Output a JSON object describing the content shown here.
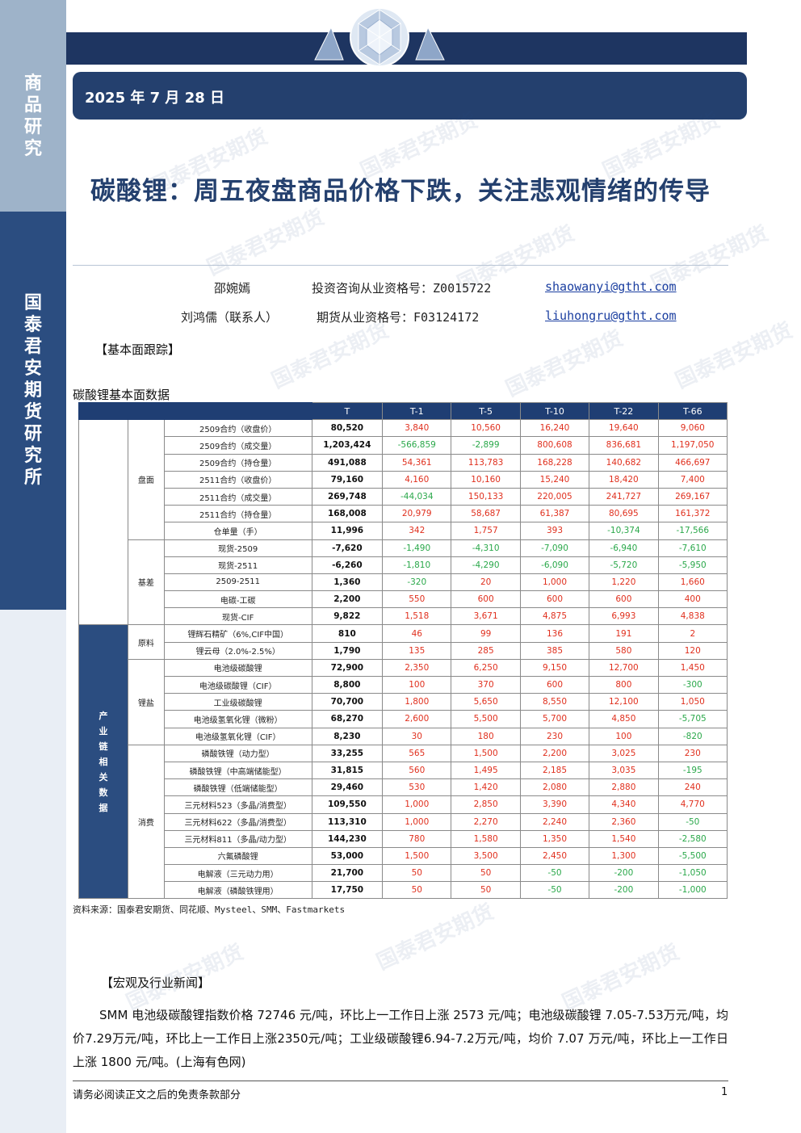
{
  "sidebar": {
    "top_label": "商品研究",
    "org_label": "国泰君安期货研究所"
  },
  "header": {
    "date": "2025 年 7 月 28 日"
  },
  "watermark": {
    "text": "国泰君安期货"
  },
  "title": "碳酸锂：周五夜盘商品价格下跌，关注悲观情绪的传导",
  "authors": [
    {
      "name": "邵婉嫣",
      "cert_label": "投资咨询从业资格号：Z0015722",
      "email": "shaowanyi@gtht.com"
    },
    {
      "name": "刘鸿儒（联系人）",
      "cert_label": "期货从业资格号：F03124172",
      "email": "liuhongru@gtht.com"
    }
  ],
  "sections": {
    "fundamental": "【基本面跟踪】",
    "news": "【宏观及行业新闻】"
  },
  "table": {
    "caption": "碳酸锂基本面数据",
    "headers": [
      "T",
      "T-1",
      "T-5",
      "T-10",
      "T-22",
      "T-66"
    ],
    "main_category": "产业链相关数据",
    "groups": [
      {
        "name": "盘面",
        "rows": [
          {
            "item": "2509合约（收盘价）",
            "t": "80,520",
            "vals": [
              "3,840",
              "10,560",
              "16,240",
              "19,640",
              "9,060"
            ]
          },
          {
            "item": "2509合约（成交量）",
            "t": "1,203,424",
            "vals": [
              "-566,859",
              "-2,899",
              "800,608",
              "836,681",
              "1,197,050"
            ]
          },
          {
            "item": "2509合约（持仓量）",
            "t": "491,088",
            "vals": [
              "54,361",
              "113,783",
              "168,228",
              "140,682",
              "466,697"
            ]
          },
          {
            "item": "2511合约（收盘价）",
            "t": "79,160",
            "vals": [
              "4,160",
              "10,160",
              "15,240",
              "18,420",
              "7,400"
            ]
          },
          {
            "item": "2511合约（成交量）",
            "t": "269,748",
            "vals": [
              "-44,034",
              "150,133",
              "220,005",
              "241,727",
              "269,167"
            ]
          },
          {
            "item": "2511合约（持仓量）",
            "t": "168,008",
            "vals": [
              "20,979",
              "58,687",
              "61,387",
              "80,695",
              "161,372"
            ]
          },
          {
            "item": "仓单量（手）",
            "t": "11,996",
            "vals": [
              "342",
              "1,757",
              "393",
              "-10,374",
              "-17,566"
            ]
          }
        ]
      },
      {
        "name": "基差",
        "rows": [
          {
            "item": "现货-2509",
            "t": "-7,620",
            "vals": [
              "-1,490",
              "-4,310",
              "-7,090",
              "-6,940",
              "-7,610"
            ]
          },
          {
            "item": "现货-2511",
            "t": "-6,260",
            "vals": [
              "-1,810",
              "-4,290",
              "-6,090",
              "-5,720",
              "-5,950"
            ]
          },
          {
            "item": "2509-2511",
            "t": "1,360",
            "vals": [
              "-320",
              "20",
              "1,000",
              "1,220",
              "1,660"
            ]
          },
          {
            "item": "电碳-工碳",
            "t": "2,200",
            "vals": [
              "550",
              "600",
              "600",
              "600",
              "400"
            ]
          },
          {
            "item": "现货-CIF",
            "t": "9,822",
            "vals": [
              "1,518",
              "3,671",
              "4,875",
              "6,993",
              "4,838"
            ]
          }
        ]
      },
      {
        "name": "原料",
        "rows": [
          {
            "item": "锂辉石精矿（6%,CIF中国）",
            "t": "810",
            "vals": [
              "46",
              "99",
              "136",
              "191",
              "2"
            ]
          },
          {
            "item": "锂云母（2.0%-2.5%）",
            "t": "1,790",
            "vals": [
              "135",
              "285",
              "385",
              "580",
              "120"
            ]
          }
        ]
      },
      {
        "name": "锂盐",
        "rows": [
          {
            "item": "电池级碳酸锂",
            "t": "72,900",
            "vals": [
              "2,350",
              "6,250",
              "9,150",
              "12,700",
              "1,450"
            ]
          },
          {
            "item": "电池级碳酸锂（CIF）",
            "t": "8,800",
            "vals": [
              "100",
              "370",
              "600",
              "800",
              "-300"
            ]
          },
          {
            "item": "工业级碳酸锂",
            "t": "70,700",
            "vals": [
              "1,800",
              "5,650",
              "8,550",
              "12,100",
              "1,050"
            ]
          },
          {
            "item": "电池级氢氧化锂（微粉）",
            "t": "68,270",
            "vals": [
              "2,600",
              "5,500",
              "5,700",
              "4,850",
              "-5,705"
            ]
          },
          {
            "item": "电池级氢氧化锂（CIF）",
            "t": "8,230",
            "vals": [
              "30",
              "180",
              "230",
              "100",
              "-820"
            ]
          }
        ]
      },
      {
        "name": "消费",
        "rows": [
          {
            "item": "磷酸铁锂（动力型）",
            "t": "33,255",
            "vals": [
              "565",
              "1,500",
              "2,200",
              "3,025",
              "230"
            ]
          },
          {
            "item": "磷酸铁锂（中高端储能型）",
            "t": "31,815",
            "vals": [
              "560",
              "1,495",
              "2,185",
              "3,035",
              "-195"
            ]
          },
          {
            "item": "磷酸铁锂（低端储能型）",
            "t": "29,460",
            "vals": [
              "530",
              "1,420",
              "2,080",
              "2,880",
              "240"
            ]
          },
          {
            "item": "三元材料523（多晶/消费型）",
            "t": "109,550",
            "vals": [
              "1,000",
              "2,850",
              "3,390",
              "4,340",
              "4,770"
            ]
          },
          {
            "item": "三元材料622（多晶/消费型）",
            "t": "113,310",
            "vals": [
              "1,000",
              "2,270",
              "2,240",
              "2,360",
              "-50"
            ]
          },
          {
            "item": "三元材料811（多晶/动力型）",
            "t": "144,230",
            "vals": [
              "780",
              "1,580",
              "1,350",
              "1,540",
              "-2,580"
            ]
          },
          {
            "item": "六氟磷酸锂",
            "t": "53,000",
            "vals": [
              "1,500",
              "3,500",
              "2,450",
              "1,300",
              "-5,500"
            ]
          },
          {
            "item": "电解液（三元动力用）",
            "t": "21,700",
            "vals": [
              "50",
              "50",
              "-50",
              "-200",
              "-1,050"
            ]
          },
          {
            "item": "电解液（磷酸铁锂用）",
            "t": "17,750",
            "vals": [
              "50",
              "50",
              "-50",
              "-200",
              "-1,000"
            ]
          }
        ]
      }
    ],
    "source": "资料来源：国泰君安期货、同花顺、Mysteel、SMM、Fastmarkets"
  },
  "news_paragraph": "SMM 电池级碳酸锂指数价格 72746 元/吨，环比上一工作日上涨 2573 元/吨；电池级碳酸锂 7.05-7.53万元/吨，均价7.29万元/吨，环比上一工作日上涨2350元/吨；工业级碳酸锂6.94-7.2万元/吨，均价 7.07 万元/吨，环比上一工作日上涨 1800 元/吨。(上海有色网)",
  "footer": {
    "disclaimer": "请务必阅读正文之后的免责条款部分",
    "page_number": "1"
  },
  "colors": {
    "navy": "#1e3561",
    "accent_blue": "#2b4d80",
    "positive": "#e0301e",
    "negative": "#2aa84a"
  }
}
